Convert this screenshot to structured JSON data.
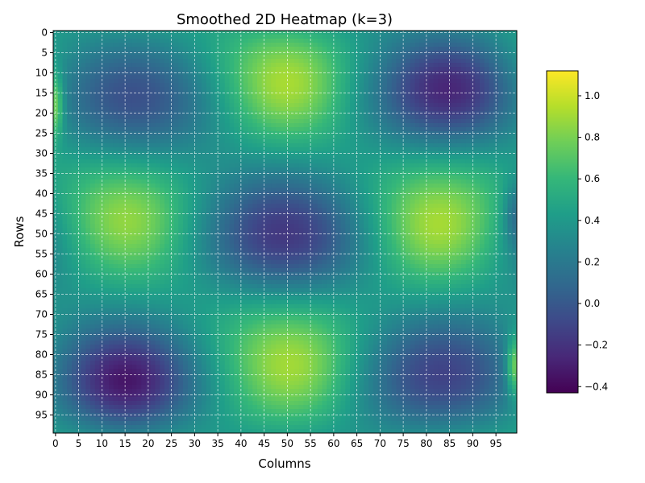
{
  "chart_data": {
    "type": "heatmap",
    "title": "Smoothed 2D Heatmap (k=3)",
    "xlabel": "Columns",
    "ylabel": "Rows",
    "rows": 100,
    "cols": 100,
    "x_ticks": [
      0,
      5,
      10,
      15,
      20,
      25,
      30,
      35,
      40,
      45,
      50,
      55,
      60,
      65,
      70,
      75,
      80,
      85,
      90,
      95
    ],
    "y_ticks": [
      0,
      5,
      10,
      15,
      20,
      25,
      30,
      35,
      40,
      45,
      50,
      55,
      60,
      65,
      70,
      75,
      80,
      85,
      90,
      95
    ],
    "colorbar": {
      "colormap": "viridis",
      "vmin": -0.43,
      "vmax": 1.12,
      "ticks": [
        -0.4,
        -0.2,
        0.0,
        0.2,
        0.4,
        0.6,
        0.8,
        1.0
      ],
      "tick_labels": [
        "−0.4",
        "−0.2",
        "0.0",
        "0.2",
        "0.4",
        "0.6",
        "0.8",
        "1.0"
      ]
    },
    "grid": true,
    "grid_style": "dashed white",
    "notable_regions": [
      {
        "row": 14,
        "col": 50,
        "value": 1.1
      },
      {
        "row": 48,
        "col": 15,
        "value": 1.05
      },
      {
        "row": 50,
        "col": 82,
        "value": 1.05
      },
      {
        "row": 85,
        "col": 52,
        "value": 1.1
      },
      {
        "row": 13,
        "col": 86,
        "value": -0.35
      },
      {
        "row": 88,
        "col": 15,
        "value": -0.42
      },
      {
        "row": 50,
        "col": 50,
        "value": 0.05
      }
    ]
  },
  "colors": {
    "viridis": [
      "#440154",
      "#482878",
      "#3e4989",
      "#31688e",
      "#26828e",
      "#1f9e89",
      "#35b779",
      "#6ece58",
      "#b5de2b",
      "#fde725"
    ]
  }
}
